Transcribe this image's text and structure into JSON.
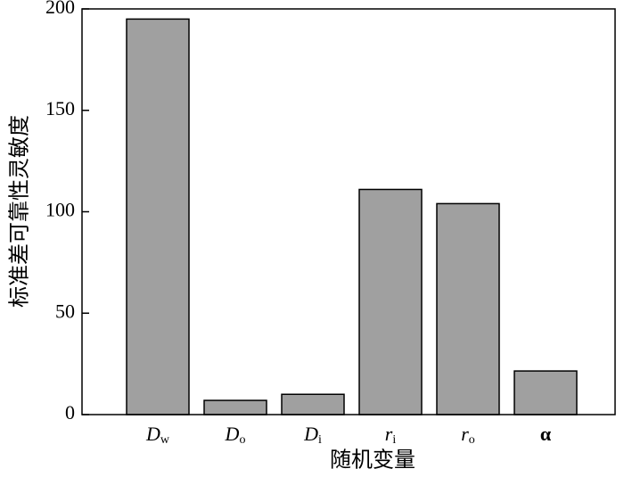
{
  "chart_data": {
    "type": "bar",
    "xlabel": "随机变量",
    "ylabel": "标准差可靠性灵敏度",
    "categories": [
      "Dw",
      "Do",
      "Di",
      "ri",
      "ro",
      "α"
    ],
    "values": [
      195,
      7,
      10,
      111,
      104,
      21.5
    ],
    "color": "#a0a0a0",
    "ylim": [
      0,
      200
    ],
    "yticks": [
      0,
      50,
      100,
      150,
      200
    ],
    "grid": false
  }
}
